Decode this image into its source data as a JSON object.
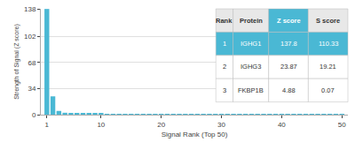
{
  "chart_data": {
    "type": "bar",
    "x": [
      1,
      2,
      3,
      4,
      5,
      6,
      7,
      8,
      9,
      10,
      11,
      12,
      13,
      14,
      15,
      16,
      17,
      18,
      19,
      20,
      21,
      22,
      23,
      24,
      25,
      26,
      27,
      28,
      29,
      30,
      31,
      32,
      33,
      34,
      35,
      36,
      37,
      38,
      39,
      40,
      41,
      42,
      43,
      44,
      45,
      46,
      47,
      48,
      49,
      50
    ],
    "values": [
      137.8,
      23.87,
      4.88,
      2.5,
      2.0,
      1.8,
      1.6,
      1.4,
      1.3,
      1.2,
      1.1,
      1.0,
      0.95,
      0.9,
      0.85,
      0.8,
      0.78,
      0.76,
      0.74,
      0.72,
      0.7,
      0.68,
      0.66,
      0.64,
      0.62,
      0.6,
      0.58,
      0.56,
      0.54,
      0.52,
      0.5,
      0.48,
      0.46,
      0.44,
      0.42,
      0.4,
      0.38,
      0.36,
      0.34,
      0.32,
      0.3,
      0.28,
      0.26,
      0.24,
      0.22,
      0.2,
      0.18,
      0.16,
      0.14,
      0.12
    ],
    "color": "#4ab8d4",
    "xlim": [
      0,
      51
    ],
    "xticks": [
      1,
      10,
      20,
      30,
      40,
      50
    ],
    "ylim": [
      0,
      138
    ],
    "yticks": [
      0,
      34,
      68,
      102,
      138
    ],
    "xlabel": "Signal Rank (Top 50)",
    "ylabel": "Strength of Signal (Z score)",
    "grid": true,
    "table": [
      [
        "Rank",
        "Protein",
        "Z score",
        "S score"
      ],
      [
        "1",
        "IGHG1",
        "137.8",
        "110.33"
      ],
      [
        "2",
        "IGHG3",
        "23.87",
        "19.21"
      ],
      [
        "3",
        "FKBP1B",
        "4.88",
        "0.07"
      ]
    ]
  }
}
